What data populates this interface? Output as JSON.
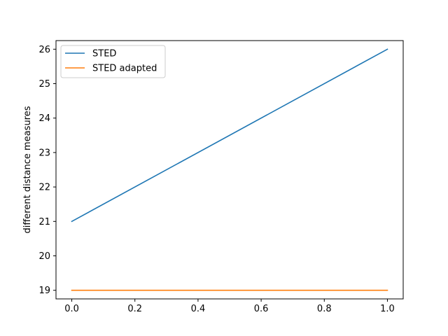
{
  "chart_data": {
    "type": "line",
    "title": "",
    "xlabel": "",
    "ylabel": "different distance measures",
    "xlim": [
      -0.05,
      1.05
    ],
    "ylim": [
      18.75,
      26.25
    ],
    "xticks": [
      0.0,
      0.2,
      0.4,
      0.6,
      0.8,
      1.0
    ],
    "xtick_labels": [
      "0.0",
      "0.2",
      "0.4",
      "0.6",
      "0.8",
      "1.0"
    ],
    "yticks": [
      19,
      20,
      21,
      22,
      23,
      24,
      25,
      26
    ],
    "ytick_labels": [
      "19",
      "20",
      "21",
      "22",
      "23",
      "24",
      "25",
      "26"
    ],
    "grid": false,
    "legend_position": "top-left",
    "series": [
      {
        "name": "STED",
        "color": "#1f77b4",
        "x": [
          0.0,
          1.0
        ],
        "y": [
          21,
          26
        ]
      },
      {
        "name": "STED adapted",
        "color": "#ff7f0e",
        "x": [
          0.0,
          1.0
        ],
        "y": [
          19,
          19
        ]
      }
    ]
  }
}
